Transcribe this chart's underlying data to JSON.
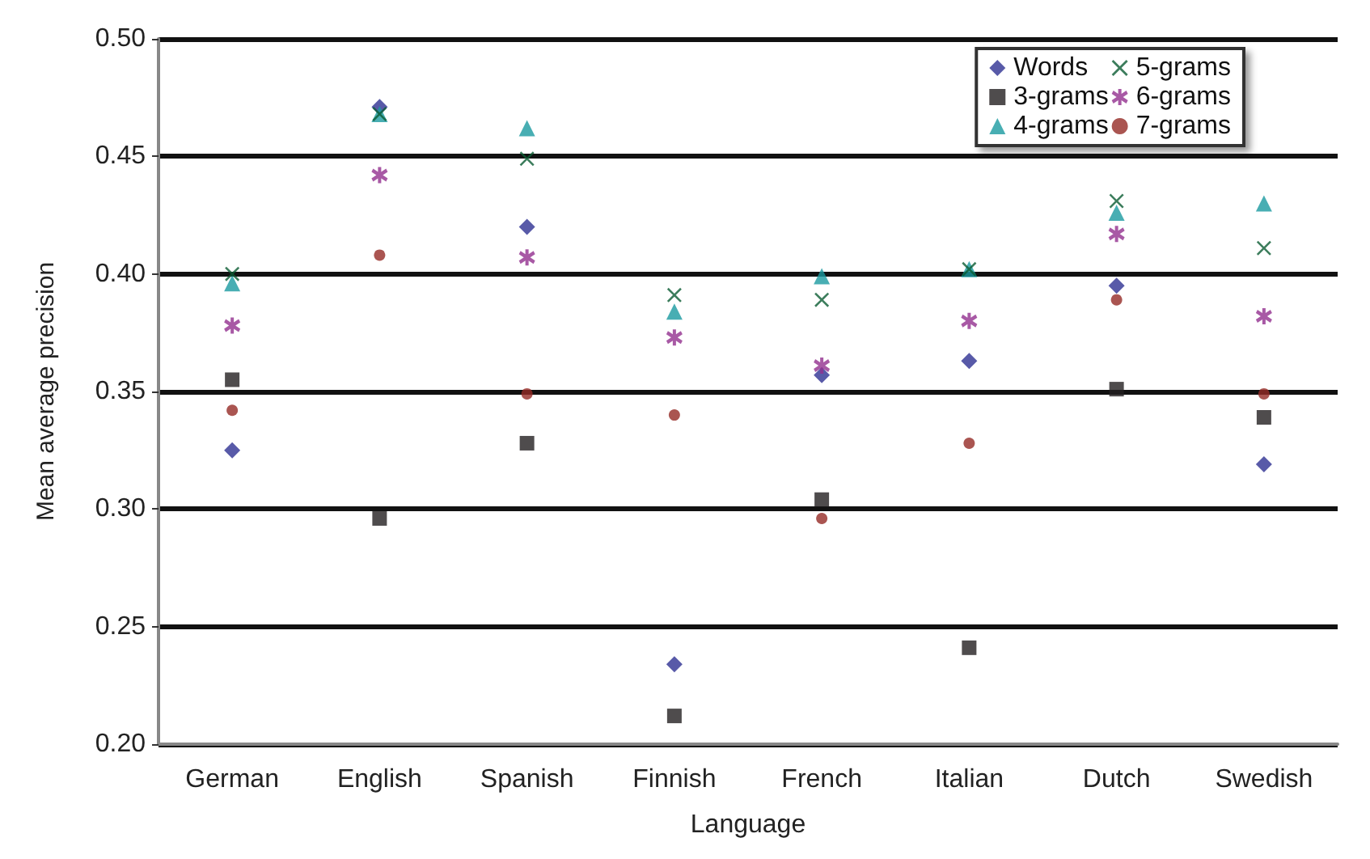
{
  "chart_data": {
    "type": "scatter",
    "xlabel": "Language",
    "ylabel": "Mean average precision",
    "categories": [
      "German",
      "English",
      "Spanish",
      "Finnish",
      "French",
      "Italian",
      "Dutch",
      "Swedish"
    ],
    "series": [
      {
        "name": "Words",
        "color": "#2e3192",
        "marker": "diamond",
        "values": [
          0.325,
          0.471,
          0.42,
          0.234,
          0.357,
          0.363,
          0.395,
          0.319
        ]
      },
      {
        "name": "3-grams",
        "color": "#231f20",
        "marker": "square",
        "values": [
          0.355,
          0.296,
          0.328,
          0.212,
          0.304,
          0.241,
          0.351,
          0.339
        ]
      },
      {
        "name": "4-grams",
        "color": "#1a9aa0",
        "marker": "triangle",
        "values": [
          0.396,
          0.468,
          0.462,
          0.384,
          0.399,
          0.402,
          0.426,
          0.43
        ]
      },
      {
        "name": "5-grams",
        "color": "#0b5d33",
        "marker": "cross",
        "values": [
          0.4,
          0.468,
          0.449,
          0.391,
          0.389,
          0.402,
          0.431,
          0.411
        ]
      },
      {
        "name": "6-grams",
        "color": "#922f8f",
        "marker": "star",
        "values": [
          0.378,
          0.442,
          0.407,
          0.373,
          0.361,
          0.38,
          0.417,
          0.382
        ]
      },
      {
        "name": "7-grams",
        "color": "#952a25",
        "marker": "circle",
        "values": [
          0.342,
          0.408,
          0.349,
          0.34,
          0.296,
          0.328,
          0.389,
          0.349
        ]
      }
    ],
    "ylim": [
      0.2,
      0.5
    ],
    "yticks": [
      {
        "value": 0.2,
        "label": "0.20"
      },
      {
        "value": 0.25,
        "label": "0.25"
      },
      {
        "value": 0.3,
        "label": "0.30"
      },
      {
        "value": 0.35,
        "label": "0.35"
      },
      {
        "value": 0.4,
        "label": "0.40"
      },
      {
        "value": 0.45,
        "label": "0.45"
      },
      {
        "value": 0.5,
        "label": "0.50"
      }
    ],
    "grid": "y",
    "legend": "top right"
  }
}
